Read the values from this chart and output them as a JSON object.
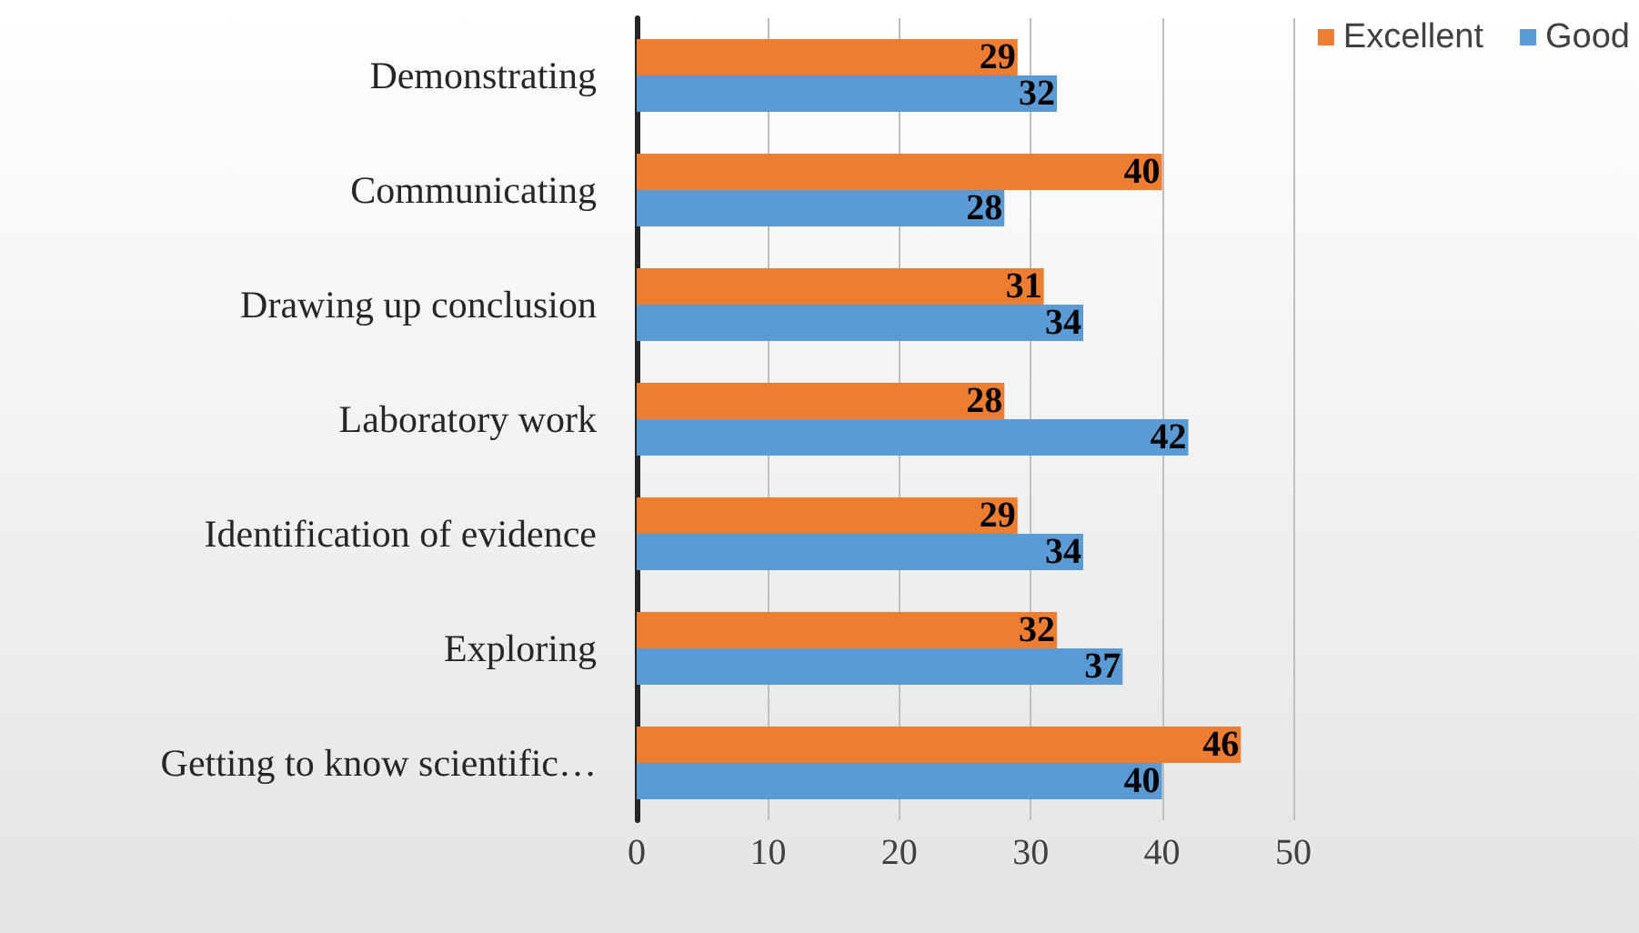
{
  "chart_data": {
    "type": "bar",
    "orientation": "horizontal",
    "categories": [
      "Demonstrating",
      "Communicating",
      "Drawing up conclusion",
      "Laboratory work",
      "Identification of evidence",
      "Exploring",
      "Getting to know scientific…"
    ],
    "series": [
      {
        "name": "Excellent",
        "color": "#ed7d31",
        "values": [
          29,
          40,
          31,
          28,
          29,
          32,
          46
        ]
      },
      {
        "name": "Good",
        "color": "#5b9bd5",
        "values": [
          32,
          28,
          34,
          42,
          34,
          37,
          40
        ]
      }
    ],
    "xlim": [
      0,
      50
    ],
    "xticks": [
      0,
      10,
      20,
      30,
      40,
      50
    ],
    "grid": "x",
    "legend": "top right",
    "data_labels": true
  }
}
